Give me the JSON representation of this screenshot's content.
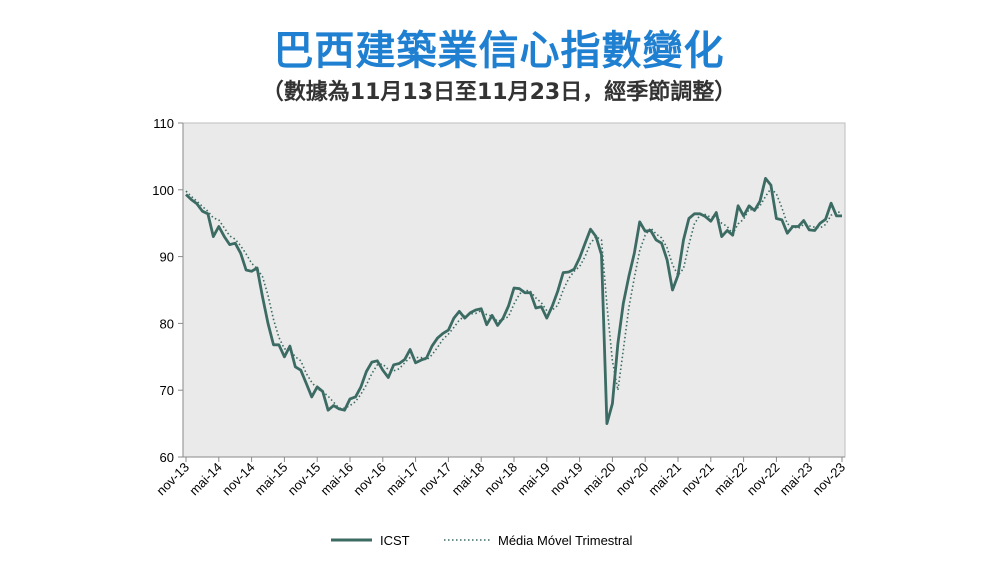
{
  "title": "巴西建築業信心指數變化",
  "subtitle": "（數據為11月13日至11月23日，經季節調整）",
  "colors": {
    "icst": "#3b6b63",
    "mm3": "#3b6b63",
    "plot_bg": "#eaeaea"
  },
  "chart_data": {
    "type": "line",
    "title": "巴西建築業信心指數變化",
    "xlabel": "",
    "ylabel": "",
    "ylim": [
      60,
      110
    ],
    "yticks": [
      60,
      70,
      80,
      90,
      100,
      110
    ],
    "grid": false,
    "legend_position": "bottom",
    "x_tick_labels": [
      "nov-13",
      "mai-14",
      "nov-14",
      "mai-15",
      "nov-15",
      "mai-16",
      "nov-16",
      "mai-17",
      "nov-17",
      "mai-18",
      "nov-18",
      "mai-19",
      "nov-19",
      "mai-20",
      "nov-20",
      "mai-21",
      "nov-21",
      "mai-22",
      "nov-22",
      "mai-23",
      "nov-23"
    ],
    "series": [
      {
        "name": "ICST",
        "style": "solid",
        "values": [
          99.3,
          98.5,
          97.9,
          96.8,
          96.4,
          93.0,
          94.5,
          93.0,
          91.8,
          92.0,
          90.5,
          88.0,
          87.8,
          88.3,
          84.0,
          80.0,
          76.8,
          76.8,
          75.0,
          76.6,
          73.5,
          73.0,
          71.0,
          69.0,
          70.5,
          69.8,
          67.0,
          67.7,
          67.2,
          67.0,
          68.7,
          69.0,
          70.5,
          72.8,
          74.2,
          74.4,
          73.0,
          71.9,
          73.8,
          74.0,
          74.6,
          76.1,
          74.1,
          74.5,
          74.8,
          76.6,
          77.8,
          78.5,
          79.0,
          80.8,
          81.8,
          80.8,
          81.6,
          82.0,
          82.2,
          79.8,
          81.2,
          79.7,
          80.8,
          82.6,
          85.3,
          85.2,
          84.6,
          84.6,
          82.3,
          82.5,
          80.8,
          82.6,
          84.8,
          87.6,
          87.7,
          88.1,
          89.8,
          92.0,
          94.1,
          93.0,
          90.3,
          65.0,
          68.0,
          77.0,
          83.0,
          87.0,
          90.5,
          95.2,
          93.8,
          93.9,
          92.5,
          92.0,
          89.5,
          85.0,
          87.2,
          92.5,
          95.7,
          96.4,
          96.4,
          96.0,
          95.3,
          96.6,
          93.0,
          93.9,
          93.2,
          97.6,
          96.1,
          97.6,
          96.9,
          98.3,
          101.7,
          100.7,
          95.7,
          95.5,
          93.5,
          94.5,
          94.5,
          95.4,
          94.0,
          93.9,
          95.0,
          95.6,
          98.0,
          96.1,
          96.1
        ]
      },
      {
        "name": "Média Móvel Trimestral",
        "style": "dotted",
        "values": [
          99.8,
          99.0,
          98.3,
          97.5,
          96.8,
          95.8,
          95.5,
          94.3,
          93.1,
          92.6,
          91.6,
          90.4,
          89.0,
          88.2,
          87.0,
          84.2,
          80.6,
          77.9,
          76.2,
          76.1,
          75.0,
          74.4,
          72.5,
          71.2,
          70.2,
          69.8,
          69.1,
          68.2,
          67.3,
          67.3,
          67.7,
          68.3,
          69.4,
          70.8,
          72.5,
          73.8,
          73.9,
          73.1,
          72.9,
          73.2,
          74.1,
          74.9,
          74.9,
          74.9,
          74.5,
          75.3,
          76.4,
          77.6,
          78.4,
          79.4,
          80.5,
          81.1,
          81.4,
          81.5,
          81.9,
          81.3,
          81.1,
          80.3,
          80.6,
          81.0,
          82.9,
          84.4,
          85.0,
          84.8,
          83.8,
          83.1,
          81.9,
          82.0,
          82.7,
          85.0,
          86.7,
          87.8,
          88.5,
          90.0,
          92.0,
          93.0,
          92.5,
          82.8,
          74.4,
          70.0,
          76.0,
          82.3,
          86.8,
          90.9,
          93.2,
          94.3,
          93.4,
          92.8,
          91.3,
          88.8,
          87.2,
          88.2,
          91.8,
          94.9,
          96.2,
          96.3,
          95.9,
          96.0,
          95.0,
          94.5,
          93.4,
          94.9,
          95.6,
          97.1,
          96.9,
          97.6,
          99.0,
          100.2,
          99.4,
          97.3,
          94.9,
          94.5,
          94.2,
          94.8,
          94.6,
          94.4,
          94.3,
          94.8,
          96.2,
          96.6,
          96.7
        ]
      }
    ]
  }
}
